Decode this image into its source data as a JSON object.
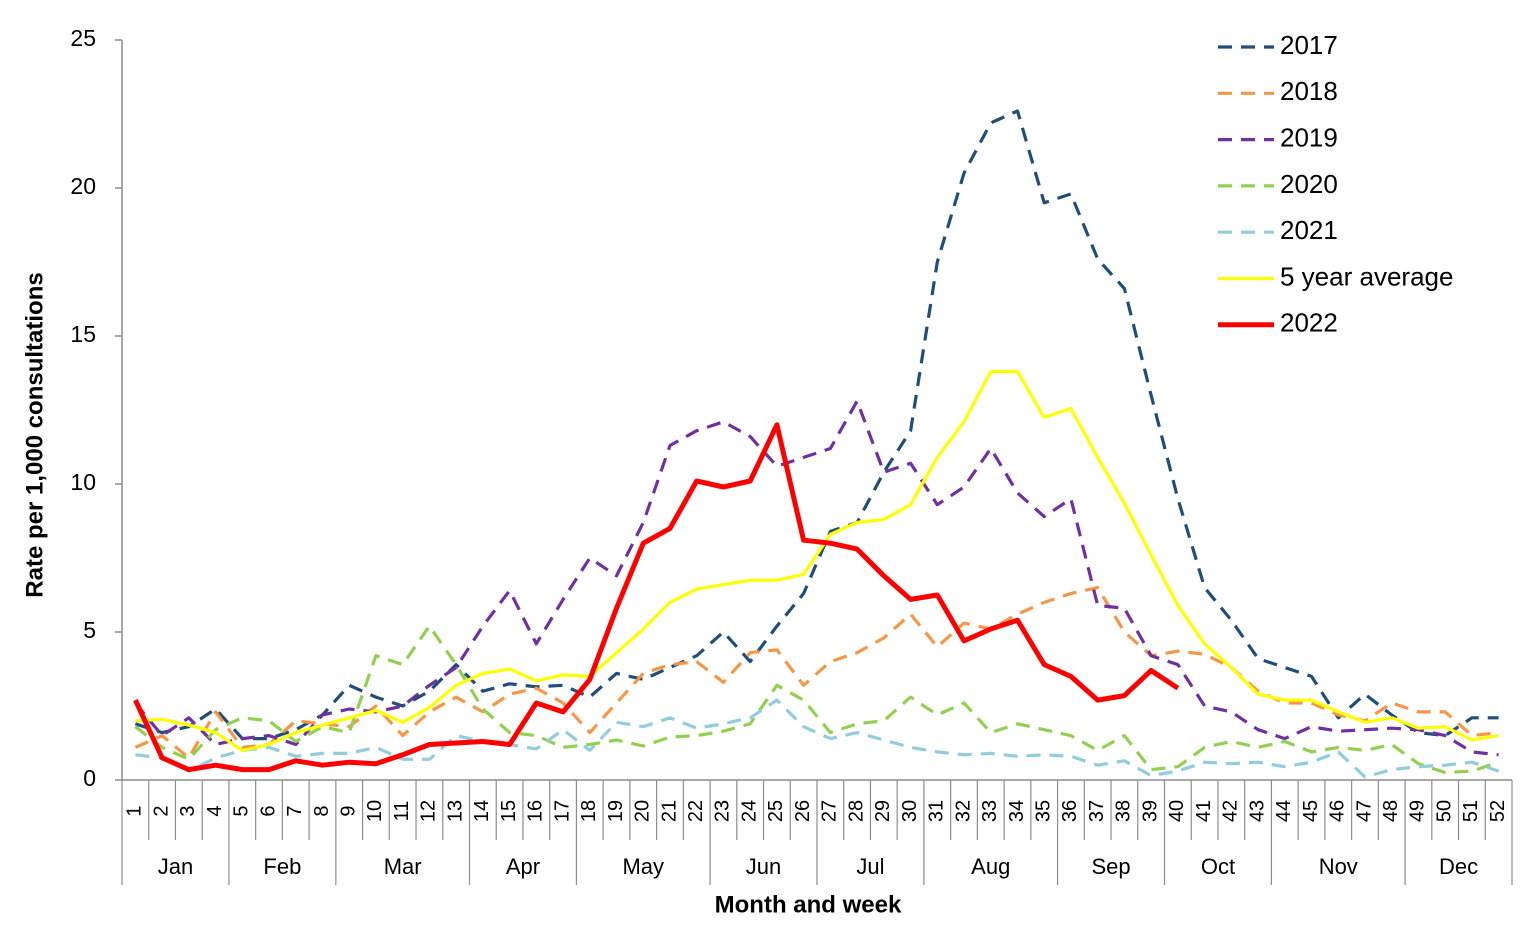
{
  "chart_data": {
    "type": "line",
    "ylabel": "Rate per 1,000 consultations",
    "xlabel": "Month and week",
    "categories": [
      "1",
      "2",
      "3",
      "4",
      "5",
      "6",
      "7",
      "8",
      "9",
      "10",
      "11",
      "12",
      "13",
      "14",
      "15",
      "16",
      "17",
      "18",
      "19",
      "20",
      "21",
      "22",
      "23",
      "24",
      "25",
      "26",
      "27",
      "28",
      "29",
      "30",
      "31",
      "32",
      "33",
      "34",
      "35",
      "36",
      "37",
      "38",
      "39",
      "40",
      "41",
      "42",
      "43",
      "44",
      "45",
      "46",
      "47",
      "48",
      "49",
      "50",
      "51",
      "52"
    ],
    "months": [
      "Jan",
      "Jan",
      "Jan",
      "Jan",
      "Feb",
      "Feb",
      "Feb",
      "Feb",
      "Mar",
      "Mar",
      "Mar",
      "Mar",
      "Mar",
      "Apr",
      "Apr",
      "Apr",
      "Apr",
      "May",
      "May",
      "May",
      "May",
      "May",
      "Jun",
      "Jun",
      "Jun",
      "Jun",
      "Jul",
      "Jul",
      "Jul",
      "Jul",
      "Aug",
      "Aug",
      "Aug",
      "Aug",
      "Aug",
      "Sep",
      "Sep",
      "Sep",
      "Sep",
      "Oct",
      "Oct",
      "Oct",
      "Oct",
      "Nov",
      "Nov",
      "Nov",
      "Nov",
      "Nov",
      "Dec",
      "Dec",
      "Dec",
      "Dec"
    ],
    "ylim": [
      0,
      25
    ],
    "yticks": [
      0,
      5,
      10,
      15,
      20,
      25
    ],
    "legend": "top-right",
    "series": [
      {
        "name": "2017",
        "color": "#1f4e79",
        "dashed": true,
        "values": [
          1.9,
          1.6,
          1.8,
          2.4,
          1.4,
          1.4,
          1.7,
          2.2,
          3.2,
          2.8,
          2.5,
          3.0,
          3.9,
          3.0,
          3.25,
          3.15,
          3.2,
          2.8,
          3.6,
          3.4,
          3.8,
          4.2,
          5.0,
          4.0,
          5.2,
          6.3,
          8.4,
          8.7,
          10.4,
          11.8,
          17.5,
          20.5,
          22.2,
          22.6,
          19.5,
          19.8,
          17.6,
          16.6,
          13.0,
          9.5,
          6.5,
          5.4,
          4.1,
          3.8,
          3.5,
          2.1,
          2.9,
          2.2,
          1.6,
          1.5,
          2.1,
          2.1
        ]
      },
      {
        "name": "2018",
        "color": "#f79646",
        "dashed": true,
        "values": [
          1.1,
          1.5,
          0.75,
          2.3,
          1.1,
          1.2,
          2.0,
          1.9,
          1.8,
          2.5,
          1.5,
          2.3,
          2.8,
          2.3,
          2.9,
          3.1,
          2.6,
          1.6,
          2.6,
          3.6,
          3.9,
          4.0,
          3.3,
          4.3,
          4.4,
          3.2,
          4.0,
          4.3,
          4.8,
          5.6,
          4.5,
          5.3,
          5.1,
          5.6,
          6.0,
          6.3,
          6.5,
          5.0,
          4.2,
          4.35,
          4.25,
          3.8,
          3.0,
          2.6,
          2.6,
          2.2,
          2.0,
          2.6,
          2.3,
          2.3,
          1.5,
          1.6
        ]
      },
      {
        "name": "2019",
        "color": "#7030a0",
        "dashed": true,
        "values": [
          2.6,
          1.5,
          2.1,
          1.2,
          1.4,
          1.5,
          1.2,
          2.2,
          2.4,
          2.3,
          2.5,
          3.2,
          3.8,
          5.2,
          6.4,
          4.6,
          6.1,
          7.5,
          6.9,
          8.7,
          11.3,
          11.8,
          12.1,
          11.6,
          10.6,
          10.9,
          11.2,
          12.8,
          10.4,
          10.7,
          9.3,
          9.9,
          11.2,
          9.7,
          8.9,
          9.5,
          5.9,
          5.8,
          4.2,
          3.9,
          2.5,
          2.3,
          1.7,
          1.4,
          1.8,
          1.65,
          1.7,
          1.75,
          1.7,
          1.5,
          0.95,
          0.85
        ]
      },
      {
        "name": "2020",
        "color": "#92d050",
        "dashed": true,
        "values": [
          1.8,
          1.1,
          0.7,
          1.7,
          2.1,
          2.0,
          1.3,
          1.8,
          1.6,
          4.2,
          3.9,
          5.2,
          3.9,
          2.4,
          1.6,
          1.5,
          1.1,
          1.2,
          1.35,
          1.15,
          1.45,
          1.5,
          1.65,
          1.9,
          3.2,
          2.7,
          1.6,
          1.9,
          2.0,
          2.8,
          2.2,
          2.6,
          1.6,
          1.9,
          1.7,
          1.5,
          1.0,
          1.5,
          0.35,
          0.45,
          1.1,
          1.3,
          1.1,
          1.3,
          0.95,
          1.1,
          1.0,
          1.2,
          0.55,
          0.25,
          0.3,
          0.6
        ]
      },
      {
        "name": "2021",
        "color": "#92cddc",
        "dashed": true,
        "values": [
          0.85,
          0.75,
          0.3,
          0.75,
          1.0,
          1.1,
          0.8,
          0.9,
          0.9,
          1.1,
          0.7,
          0.7,
          1.5,
          1.3,
          1.2,
          1.05,
          1.7,
          1.0,
          1.95,
          1.8,
          2.1,
          1.75,
          1.9,
          2.1,
          2.7,
          1.8,
          1.4,
          1.6,
          1.35,
          1.1,
          0.95,
          0.85,
          0.9,
          0.8,
          0.85,
          0.8,
          0.5,
          0.65,
          0.15,
          0.3,
          0.6,
          0.55,
          0.6,
          0.45,
          0.6,
          0.95,
          0.1,
          0.35,
          0.45,
          0.5,
          0.6,
          0.3
        ]
      },
      {
        "name": "5 year average",
        "color": "#ffff00",
        "dashed": false,
        "values": [
          2.0,
          2.05,
          1.85,
          1.6,
          1.0,
          1.2,
          1.6,
          1.85,
          2.1,
          2.35,
          1.95,
          2.45,
          3.2,
          3.6,
          3.75,
          3.35,
          3.55,
          3.5,
          4.3,
          5.1,
          6.0,
          6.45,
          6.6,
          6.75,
          6.75,
          6.95,
          8.3,
          8.7,
          8.8,
          9.3,
          10.9,
          12.1,
          13.8,
          13.8,
          12.25,
          12.55,
          10.9,
          9.35,
          7.6,
          5.9,
          4.6,
          3.8,
          2.9,
          2.7,
          2.7,
          2.3,
          1.95,
          2.1,
          1.75,
          1.8,
          1.35,
          1.5
        ]
      },
      {
        "name": "2022",
        "color": "#ff0000",
        "dashed": false,
        "values": [
          2.7,
          0.75,
          0.35,
          0.5,
          0.35,
          0.35,
          0.65,
          0.5,
          0.6,
          0.55,
          0.85,
          1.2,
          1.25,
          1.3,
          1.2,
          2.6,
          2.3,
          3.4,
          5.8,
          8.0,
          8.5,
          10.1,
          9.9,
          10.1,
          12.0,
          8.1,
          8.0,
          7.8,
          6.9,
          6.1,
          6.25,
          4.7,
          5.1,
          5.4,
          3.9,
          3.5,
          2.7,
          2.85,
          3.7,
          3.1,
          null,
          null,
          null,
          null,
          null,
          null,
          null,
          null,
          null,
          null,
          null,
          null
        ]
      }
    ]
  }
}
